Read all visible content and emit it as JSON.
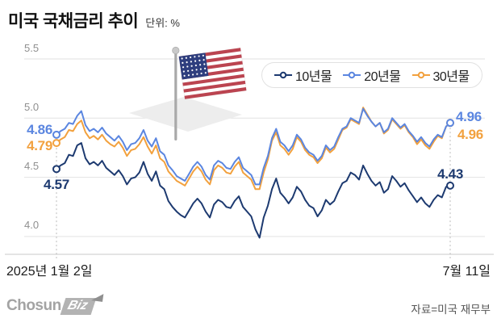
{
  "header": {
    "title": "미국 국채금리 추이",
    "unit": "단위: %"
  },
  "legend": [
    {
      "label": "10년물",
      "color": "#1d3a70"
    },
    {
      "label": "20년물",
      "color": "#5b86e0"
    },
    {
      "label": "30년물",
      "color": "#f2a13e"
    }
  ],
  "axis": {
    "y": [
      "5.5",
      "5.0",
      "4.5",
      "4.0"
    ],
    "x_left": "2025년 1월 2일",
    "x_right": "7월 11일"
  },
  "annotations": {
    "start": {
      "y10": "4.57",
      "y20": "4.86",
      "y30": "4.79"
    },
    "end": {
      "y10": "4.43",
      "y20": "4.96",
      "y30": "4.96"
    }
  },
  "footer": {
    "logo_chosun": "Chosun",
    "logo_biz": "Biz",
    "source": "자료=미국 재무부"
  },
  "chart_data": {
    "type": "line",
    "title": "미국 국채금리 추이",
    "unit": "%",
    "x_label_start": "2025년 1월 2일",
    "x_label_end": "7월 11일",
    "ylim": [
      3.85,
      5.55
    ],
    "y_ticks": [
      5.5,
      5.0,
      4.5,
      4.0
    ],
    "grid": true,
    "legend_position": "top-right",
    "series": [
      {
        "name": "30년물",
        "color": "#f2a13e",
        "start": 4.79,
        "end": 4.96,
        "values": [
          4.79,
          4.82,
          4.84,
          4.9,
          4.89,
          4.95,
          4.98,
          4.88,
          4.83,
          4.85,
          4.82,
          4.86,
          4.81,
          4.78,
          4.76,
          4.8,
          4.75,
          4.68,
          4.73,
          4.74,
          4.78,
          4.84,
          4.76,
          4.7,
          4.77,
          4.66,
          4.63,
          4.55,
          4.51,
          4.47,
          4.45,
          4.43,
          4.49,
          4.55,
          4.59,
          4.55,
          4.48,
          4.44,
          4.56,
          4.6,
          4.58,
          4.54,
          4.53,
          4.59,
          4.63,
          4.54,
          4.51,
          4.48,
          4.4,
          4.4,
          4.54,
          4.65,
          4.81,
          4.88,
          4.77,
          4.74,
          4.69,
          4.74,
          4.84,
          4.8,
          4.73,
          4.69,
          4.67,
          4.62,
          4.66,
          4.75,
          4.71,
          4.74,
          4.82,
          4.9,
          4.92,
          4.99,
          4.97,
          4.95,
          5.09,
          5.03,
          4.97,
          4.93,
          4.96,
          4.87,
          4.9,
          4.99,
          4.95,
          4.91,
          4.94,
          4.88,
          4.84,
          4.78,
          4.82,
          4.77,
          4.74,
          4.8,
          4.85,
          4.83,
          4.93,
          4.96
        ]
      },
      {
        "name": "20년물",
        "color": "#5b86e0",
        "start": 4.86,
        "end": 4.96,
        "values": [
          4.86,
          4.89,
          4.91,
          4.96,
          4.95,
          5.02,
          5.06,
          4.94,
          4.89,
          4.91,
          4.88,
          4.92,
          4.87,
          4.84,
          4.81,
          4.85,
          4.8,
          4.73,
          4.78,
          4.79,
          4.83,
          4.9,
          4.81,
          4.76,
          4.83,
          4.72,
          4.69,
          4.6,
          4.56,
          4.51,
          4.49,
          4.47,
          4.53,
          4.59,
          4.63,
          4.59,
          4.52,
          4.48,
          4.6,
          4.64,
          4.62,
          4.58,
          4.57,
          4.63,
          4.67,
          4.58,
          4.55,
          4.52,
          4.44,
          4.44,
          4.58,
          4.68,
          4.83,
          4.91,
          4.8,
          4.77,
          4.72,
          4.77,
          4.86,
          4.82,
          4.75,
          4.71,
          4.69,
          4.64,
          4.68,
          4.77,
          4.73,
          4.76,
          4.84,
          4.91,
          4.93,
          5.0,
          4.98,
          4.96,
          5.08,
          5.02,
          4.97,
          4.93,
          4.96,
          4.88,
          4.91,
          5.0,
          4.96,
          4.92,
          4.95,
          4.89,
          4.85,
          4.8,
          4.84,
          4.79,
          4.76,
          4.82,
          4.86,
          4.84,
          4.93,
          4.96
        ]
      },
      {
        "name": "10년물",
        "color": "#1d3a70",
        "start": 4.57,
        "end": 4.43,
        "values": [
          4.57,
          4.6,
          4.62,
          4.69,
          4.68,
          4.77,
          4.79,
          4.66,
          4.61,
          4.63,
          4.6,
          4.64,
          4.58,
          4.55,
          4.52,
          4.56,
          4.51,
          4.44,
          4.49,
          4.5,
          4.54,
          4.63,
          4.53,
          4.47,
          4.55,
          4.43,
          4.4,
          4.3,
          4.25,
          4.21,
          4.18,
          4.16,
          4.22,
          4.28,
          4.32,
          4.28,
          4.21,
          4.16,
          4.27,
          4.31,
          4.29,
          4.25,
          4.24,
          4.3,
          4.34,
          4.25,
          4.21,
          4.17,
          4.06,
          3.99,
          4.16,
          4.26,
          4.4,
          4.49,
          4.37,
          4.33,
          4.28,
          4.33,
          4.42,
          4.38,
          4.31,
          4.26,
          4.24,
          4.17,
          4.22,
          4.31,
          4.27,
          4.3,
          4.38,
          4.45,
          4.47,
          4.54,
          4.52,
          4.48,
          4.6,
          4.53,
          4.47,
          4.43,
          4.46,
          4.37,
          4.4,
          4.51,
          4.47,
          4.42,
          4.45,
          4.39,
          4.34,
          4.29,
          4.33,
          4.28,
          4.25,
          4.31,
          4.35,
          4.33,
          4.42,
          4.43
        ]
      }
    ]
  }
}
